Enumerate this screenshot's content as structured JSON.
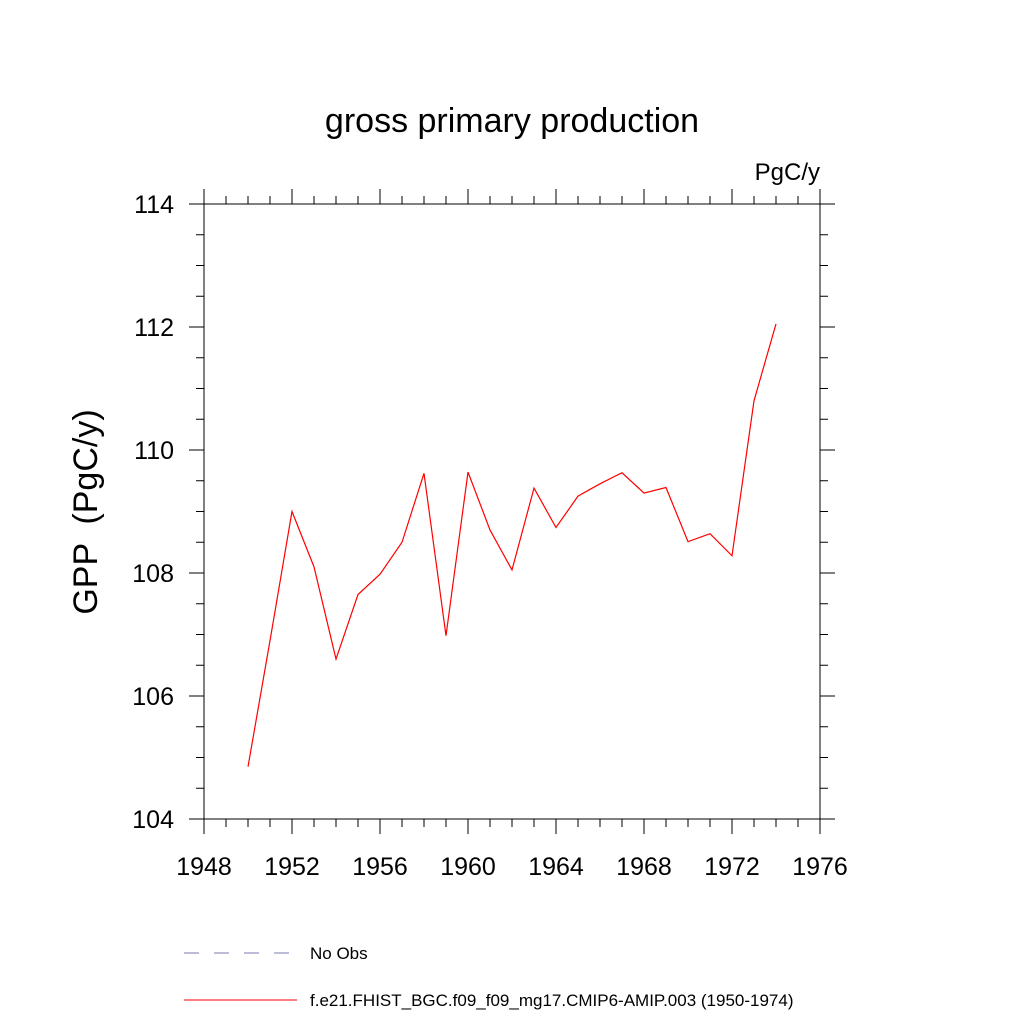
{
  "chart_data": {
    "type": "line",
    "title": "gross primary production",
    "units_label": "PgC/y",
    "xlabel": "",
    "ylabel": "GPP  (PgC/y)",
    "xlim": [
      1948,
      1976
    ],
    "ylim": [
      104,
      114
    ],
    "x_ticks": [
      1948,
      1952,
      1956,
      1960,
      1964,
      1968,
      1972,
      1976
    ],
    "y_ticks": [
      104,
      106,
      108,
      110,
      112,
      114
    ],
    "x_minor_step": 1,
    "y_minor_step": 0.5,
    "grid": false,
    "legend_position": "bottom-left",
    "series": [
      {
        "name": "f.e21.FHIST_BGC.f09_f09_mg17.CMIP6-AMIP.003 (1950-1974)",
        "color": "#ff0000",
        "dash": "solid",
        "x": [
          1950,
          1951,
          1952,
          1953,
          1954,
          1955,
          1956,
          1957,
          1958,
          1959,
          1960,
          1961,
          1962,
          1963,
          1964,
          1965,
          1966,
          1967,
          1968,
          1969,
          1970,
          1971,
          1972,
          1973,
          1974
        ],
        "values": [
          104.85,
          106.9,
          109.0,
          108.1,
          106.6,
          107.65,
          107.98,
          108.5,
          109.62,
          106.98,
          109.64,
          108.7,
          108.05,
          109.38,
          108.74,
          109.25,
          109.45,
          109.63,
          109.3,
          109.39,
          108.51,
          108.64,
          108.28,
          110.8,
          112.05
        ]
      }
    ],
    "legend": [
      {
        "label": "No Obs",
        "color": "#7b7bb5",
        "dash": "dashed"
      },
      {
        "label": "f.e21.FHIST_BGC.f09_f09_mg17.CMIP6-AMIP.003 (1950-1974)",
        "color": "#ff0000",
        "dash": "solid"
      }
    ]
  }
}
